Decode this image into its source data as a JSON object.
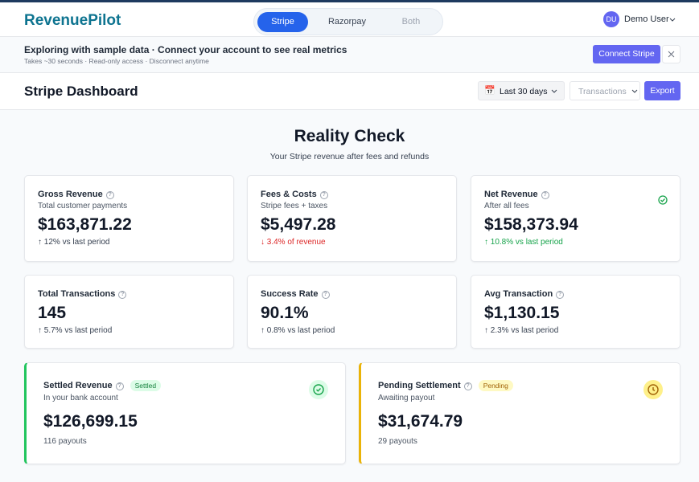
{
  "nav": {
    "brand": "RevenuePilot",
    "tabs": [
      "Stripe",
      "Razorpay",
      "Both"
    ],
    "user_initials": "DU",
    "user_name": "Demo User"
  },
  "banner": {
    "title": "Exploring with sample data · Connect your account to see real metrics",
    "subtitle": "Takes ~30 seconds · Read-only access · Disconnect anytime",
    "button": "Connect Stripe"
  },
  "header": {
    "title": "Stripe Dashboard",
    "date_range": "Last 30 days",
    "filter": "Transactions",
    "export": "Export"
  },
  "section": {
    "title": "Reality Check",
    "subtitle": "Your Stripe revenue after fees and refunds"
  },
  "cards": [
    {
      "label": "Gross Revenue",
      "sublabel": "Total customer payments",
      "value": "$163,871.22",
      "change": "↑ 12% vs last period",
      "color": "#374151"
    },
    {
      "label": "Fees & Costs",
      "sublabel": "Stripe fees + taxes",
      "value": "$5,497.28",
      "change": "↓ 3.4% of revenue",
      "color": "#dc2626"
    },
    {
      "label": "Net Revenue",
      "sublabel": "After all fees",
      "value": "$158,373.94",
      "change": "↑ 10.8% vs last period",
      "color": "#16a34a",
      "check": true
    },
    {
      "label": "Total Transactions",
      "value": "145",
      "change": "↑ 5.7% vs last period",
      "color": "#374151"
    },
    {
      "label": "Success Rate",
      "value": "90.1%",
      "change": "↑ 0.8% vs last period",
      "color": "#374151"
    },
    {
      "label": "Avg Transaction",
      "value": "$1,130.15",
      "change": "↑ 2.3% vs last period",
      "color": "#374151"
    }
  ],
  "settlement": [
    {
      "label": "Settled Revenue",
      "badge": "Settled",
      "sublabel": "In your bank account",
      "value": "$126,699.15",
      "note": "116 payouts",
      "color": "#22c55e"
    },
    {
      "label": "Pending Settlement",
      "badge": "Pending",
      "sublabel": "Awaiting payout",
      "value": "$31,674.79",
      "note": "29 payouts",
      "color": "#eab308"
    }
  ]
}
